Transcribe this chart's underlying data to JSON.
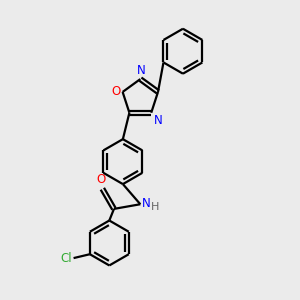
{
  "bg_color": "#ebebeb",
  "line_color": "#000000",
  "n_color": "#0000ff",
  "o_color": "#ff0000",
  "cl_color": "#33aa33",
  "h_color": "#666666",
  "line_width": 1.6,
  "dbo": 0.055,
  "figsize": [
    3.0,
    3.0
  ],
  "dpi": 100,
  "xlim": [
    -1.8,
    3.2
  ],
  "ylim": [
    -3.8,
    3.8
  ]
}
